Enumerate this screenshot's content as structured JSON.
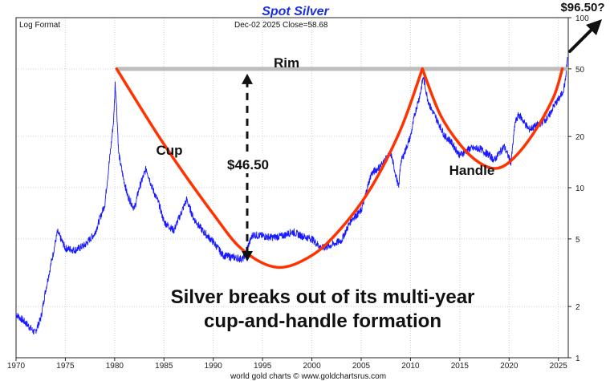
{
  "chart_data": {
    "type": "line",
    "title": "Spot Silver",
    "scale_label": "Log Format",
    "date_close_text": "Dec-02  2025   Close=58.68",
    "credit": "world gold charts © www.goldchartsrus.com",
    "x_range": [
      1970,
      2026
    ],
    "ylim": [
      1,
      100
    ],
    "y_scale": "log",
    "x_ticks": [
      1970,
      1975,
      1980,
      1985,
      1990,
      1995,
      2000,
      2005,
      2010,
      2015,
      2020,
      2025
    ],
    "y_ticks": [
      1,
      2,
      5,
      10,
      20,
      50,
      100
    ],
    "series": [
      {
        "name": "Spot Silver",
        "color": "#1a1aff",
        "x": [
          1970,
          1971,
          1971.9,
          1972.5,
          1973,
          1973.8,
          1974.2,
          1975,
          1976,
          1977,
          1978,
          1979,
          1979.5,
          1979.9,
          1980.05,
          1980.2,
          1980.4,
          1980.8,
          1981.3,
          1982,
          1982.5,
          1983.2,
          1983.8,
          1984.5,
          1985,
          1986,
          1987.3,
          1988,
          1989,
          1990,
          1991,
          1992,
          1993,
          1994,
          1995,
          1996,
          1997,
          1998,
          1999,
          2000,
          2001,
          2002,
          2003,
          2004,
          2005,
          2006,
          2007,
          2008,
          2008.8,
          2009,
          2010,
          2010.5,
          2011,
          2011.3,
          2011.7,
          2012,
          2013,
          2013.5,
          2014,
          2015,
          2016,
          2017,
          2018,
          2018.5,
          2019,
          2019.5,
          2020.2,
          2020.6,
          2021,
          2022,
          2023,
          2024,
          2024.5,
          2025,
          2025.4,
          2025.7,
          2025.92
        ],
        "values": [
          1.8,
          1.6,
          1.4,
          1.7,
          2.5,
          4.2,
          5.5,
          4.4,
          4.3,
          4.6,
          5.4,
          8,
          15,
          25,
          41,
          30,
          16,
          12,
          9,
          7.5,
          10,
          13,
          10,
          8,
          6.3,
          5.6,
          8.5,
          6.6,
          5.5,
          4.8,
          4,
          3.9,
          3.8,
          5.3,
          5.2,
          5.1,
          5.2,
          5.5,
          5.2,
          5,
          4.4,
          4.6,
          4.9,
          6.5,
          7.3,
          12,
          13.5,
          16,
          10,
          14,
          20,
          28,
          36,
          45,
          34,
          30,
          23,
          20,
          19,
          15.5,
          17,
          17,
          15.5,
          14.5,
          16,
          17.5,
          14,
          24,
          27,
          22,
          23.5,
          26,
          30,
          33,
          36,
          42,
          58.68
        ]
      }
    ],
    "annotations": {
      "rim": "Rim",
      "cup": "Cup",
      "handle": "Handle",
      "depth": "$46.50",
      "target": "$96.50?",
      "headline_line1": "Silver breaks out of its multi-year",
      "headline_line2": "cup-and-handle formation"
    },
    "rim_level": 50,
    "cup_curve": {
      "color": "#ff3300",
      "x": [
        1980.2,
        1985,
        1990,
        1993,
        1996.5,
        2000,
        2003,
        2006,
        2009,
        2011.2
      ],
      "values": [
        50,
        18,
        7,
        4.3,
        3.4,
        4,
        5.8,
        10,
        22,
        50
      ]
    },
    "handle_curve": {
      "color": "#ff3300",
      "x": [
        2011.2,
        2013,
        2015,
        2017,
        2018.8,
        2020.5,
        2022.5,
        2024.5,
        2025.4
      ],
      "values": [
        50,
        27,
        18,
        14,
        13,
        15,
        21,
        34,
        50
      ]
    }
  }
}
